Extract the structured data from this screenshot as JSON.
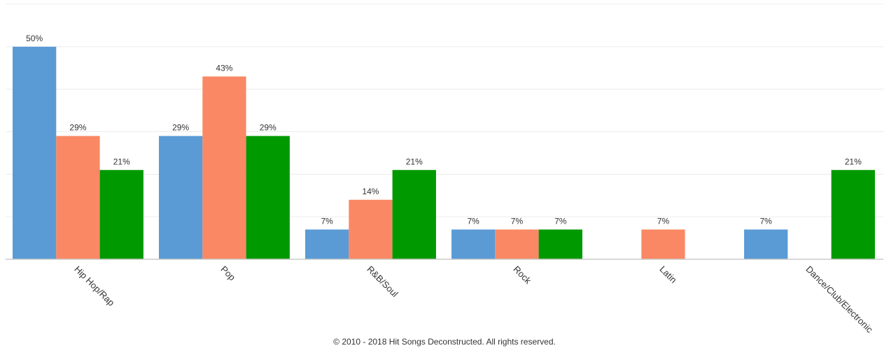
{
  "chart_data": {
    "type": "bar",
    "categories": [
      "Hip Hop/Rap",
      "Pop",
      "R&B/Soul",
      "Rock",
      "Latin",
      "Dance/Club/Electronic"
    ],
    "series": [
      {
        "color": "#5b9bd5",
        "values": [
          50,
          29,
          7,
          7,
          null,
          7
        ]
      },
      {
        "color": "#fa8865",
        "values": [
          29,
          43,
          14,
          7,
          7,
          null
        ]
      },
      {
        "color": "#009900",
        "values": [
          21,
          29,
          21,
          7,
          null,
          21
        ]
      }
    ],
    "value_suffix": "%",
    "ylim": [
      0,
      60
    ],
    "gridlines": true,
    "legend": "none",
    "xlabel": "",
    "ylabel": ""
  },
  "footer": {
    "copyright": "© 2010 - 2018 Hit Songs Deconstructed. All rights reserved."
  }
}
